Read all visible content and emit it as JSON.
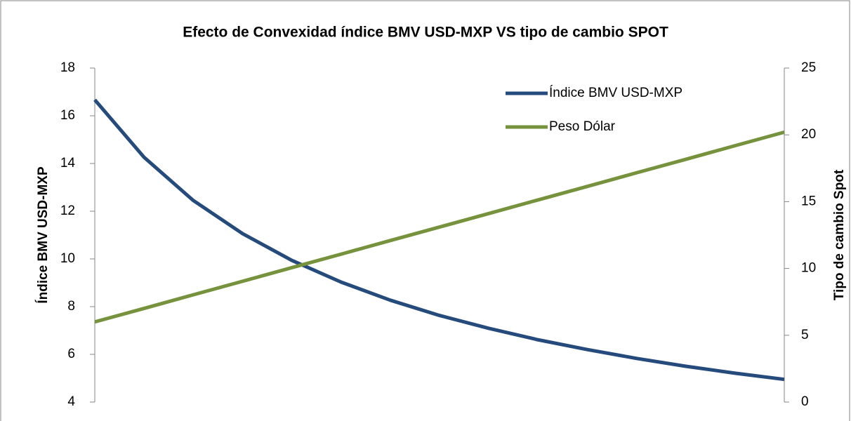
{
  "chart_data": {
    "type": "line",
    "title": "Efecto de Convexidad índice BMV USD-MXP VS tipo de cambio SPOT",
    "ylabel": "Índice BMV USD-MXP",
    "y2label": "Tipo de cambio Spot",
    "categories": [
      null,
      null,
      null,
      null,
      null,
      null,
      null,
      null,
      null,
      null,
      null,
      null,
      null,
      null,
      null
    ],
    "series": [
      {
        "name": "Índice BMV USD-MXP",
        "color": "#254a7c",
        "values": [
          16.67,
          14.26,
          12.45,
          11.06,
          9.94,
          9.03,
          8.27,
          7.63,
          7.09,
          6.61,
          6.2,
          5.83,
          5.5,
          5.21,
          4.95
        ]
      },
      {
        "name": "Peso Dólar",
        "color": "#76923c",
        "axis": "y2",
        "values": [
          6,
          7.01,
          8.03,
          9.04,
          10.06,
          11.07,
          12.09,
          13.1,
          14.11,
          15.13,
          16.14,
          17.16,
          18.17,
          19.19,
          20.2
        ]
      }
    ],
    "ylim": [
      4,
      18
    ],
    "yticks": [
      4,
      6,
      8,
      10,
      12,
      14,
      16,
      18
    ],
    "y2lim": [
      0,
      25
    ],
    "y2ticks": [
      0,
      5,
      10,
      15,
      20,
      25
    ],
    "legend": "upper right"
  }
}
